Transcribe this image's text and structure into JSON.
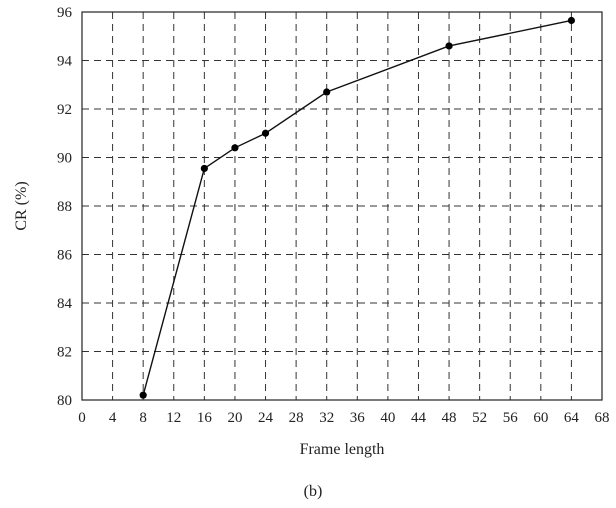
{
  "chart_data": {
    "type": "line",
    "title": "",
    "xlabel": "Frame length",
    "ylabel": "CR (%)",
    "caption": "(b)",
    "xlim": [
      0,
      68
    ],
    "ylim": [
      80,
      96
    ],
    "xticks": [
      0,
      4,
      8,
      12,
      16,
      20,
      24,
      28,
      32,
      36,
      40,
      44,
      48,
      52,
      56,
      60,
      64,
      68
    ],
    "yticks": [
      80,
      82,
      84,
      86,
      88,
      90,
      92,
      94,
      96
    ],
    "grid": true,
    "grid_style": "dashed",
    "series": [
      {
        "x": [
          8,
          16,
          20,
          24,
          32,
          48,
          64
        ],
        "values": [
          80.2,
          89.55,
          90.4,
          91.0,
          92.7,
          94.6,
          95.65
        ],
        "color": "#000000",
        "marker": "circle"
      }
    ]
  }
}
